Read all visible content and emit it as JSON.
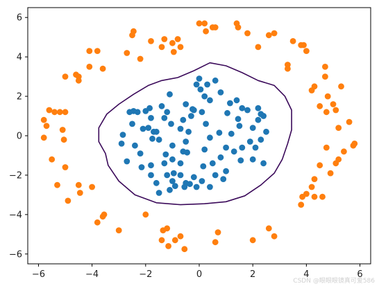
{
  "chart_data": {
    "type": "scatter",
    "xlim": [
      -6.4,
      6.4
    ],
    "ylim": [
      -6.5,
      6.5
    ],
    "xticks": [
      -6,
      -4,
      -2,
      0,
      2,
      4,
      6
    ],
    "yticks": [
      -6,
      -4,
      -2,
      0,
      2,
      4,
      6
    ],
    "grid": false,
    "legend": "none",
    "series": [
      {
        "color": "#1f77b4",
        "points": [
          [
            -2.0,
            1.25
          ],
          [
            -1.9,
            0.4
          ],
          [
            -1.85,
            1.4
          ],
          [
            -1.8,
            0.9
          ],
          [
            -1.75,
            -0.15
          ],
          [
            -1.7,
            0.2
          ],
          [
            -2.3,
            1.2
          ],
          [
            -2.5,
            0.6
          ],
          [
            -2.4,
            -0.5
          ],
          [
            -2.2,
            -0.9
          ],
          [
            -2.15,
            -1.6
          ],
          [
            -2.1,
            0.35
          ],
          [
            -1.4,
            1.5
          ],
          [
            -1.3,
            0.9
          ],
          [
            -1.2,
            1.2
          ],
          [
            -1.1,
            2.1
          ],
          [
            -1.0,
            -0.5
          ],
          [
            -1.5,
            -0.2
          ],
          [
            -1.6,
            0.2
          ],
          [
            -1.8,
            -1.5
          ],
          [
            -1.3,
            -1.4
          ],
          [
            -1.0,
            -1.2
          ],
          [
            -0.95,
            -1.9
          ],
          [
            -0.7,
            -1.4
          ],
          [
            -0.6,
            -0.8
          ],
          [
            -0.5,
            -0.3
          ],
          [
            -0.4,
            0.2
          ],
          [
            -0.6,
            0.8
          ],
          [
            -0.3,
            1.0
          ],
          [
            -0.5,
            1.6
          ],
          [
            -0.2,
            1.3
          ],
          [
            -0.1,
            2.6
          ],
          [
            0.0,
            2.9
          ],
          [
            0.3,
            2.6
          ],
          [
            0.2,
            2.0
          ],
          [
            0.6,
            2.8
          ],
          [
            0.8,
            2.2
          ],
          [
            0.4,
            1.8
          ],
          [
            0.1,
            1.2
          ],
          [
            0.25,
            0.6
          ],
          [
            0.4,
            -0.1
          ],
          [
            0.2,
            -0.7
          ],
          [
            0.5,
            -1.4
          ],
          [
            0.8,
            -1.1
          ],
          [
            1.0,
            -0.6
          ],
          [
            1.2,
            0.1
          ],
          [
            1.5,
            0.5
          ],
          [
            1.6,
            1.4
          ],
          [
            1.4,
            1.8
          ],
          [
            1.8,
            1.3
          ],
          [
            2.0,
            0.4
          ],
          [
            2.1,
            -0.6
          ],
          [
            2.3,
            -0.2
          ],
          [
            2.5,
            0.2
          ],
          [
            2.4,
            1.0
          ],
          [
            2.2,
            0.8
          ],
          [
            2.3,
            1.1
          ],
          [
            2.0,
            -1.2
          ],
          [
            2.4,
            -1.4
          ],
          [
            1.6,
            -0.6
          ],
          [
            1.3,
            -0.8
          ],
          [
            1.0,
            -1.8
          ],
          [
            0.9,
            -2.2
          ],
          [
            0.6,
            -2.0
          ],
          [
            0.4,
            -2.6
          ],
          [
            0.1,
            -2.3
          ],
          [
            -0.2,
            -2.1
          ],
          [
            -0.5,
            -2.4
          ],
          [
            -0.7,
            -2.0
          ],
          [
            -1.0,
            -2.3
          ],
          [
            -1.2,
            -2.0
          ],
          [
            -1.6,
            -2.4
          ],
          [
            -1.8,
            -2.0
          ],
          [
            -1.5,
            -2.9
          ],
          [
            -1.1,
            -2.75
          ],
          [
            -0.9,
            -2.55
          ],
          [
            -0.55,
            -2.6
          ],
          [
            -0.35,
            -2.45
          ],
          [
            -0.1,
            -2.6
          ],
          [
            0.15,
            -1.55
          ],
          [
            -2.7,
            -1.3
          ],
          [
            -2.9,
            -0.4
          ],
          [
            -2.6,
            1.2
          ],
          [
            -2.45,
            1.25
          ],
          [
            -2.85,
            0.05
          ],
          [
            1.05,
            1.15
          ],
          [
            1.15,
            1.65
          ],
          [
            1.45,
            0.85
          ],
          [
            2.2,
            1.4
          ],
          [
            1.9,
            -0.3
          ],
          [
            1.55,
            -1.25
          ],
          [
            -0.45,
            -0.85
          ],
          [
            -1.25,
            -0.95
          ],
          [
            -0.7,
            0.35
          ],
          [
            0.75,
            0.15
          ],
          [
            -1.05,
            0.6
          ],
          [
            -0.25,
            1.35
          ],
          [
            0.05,
            2.35
          ]
        ]
      },
      {
        "color": "#ff7f0e",
        "points": [
          [
            -5.8,
            0.8
          ],
          [
            -5.7,
            0.5
          ],
          [
            -5.6,
            1.3
          ],
          [
            -5.4,
            1.2
          ],
          [
            -5.2,
            1.2
          ],
          [
            -5.0,
            1.2
          ],
          [
            -5.1,
            0.3
          ],
          [
            -5.8,
            -0.1
          ],
          [
            -5.5,
            -1.2
          ],
          [
            -5.0,
            -1.6
          ],
          [
            -5.3,
            -2.5
          ],
          [
            -4.9,
            -3.3
          ],
          [
            -4.5,
            -2.5
          ],
          [
            -4.45,
            -2.9
          ],
          [
            -4.0,
            -2.6
          ],
          [
            -4.6,
            3.1
          ],
          [
            -4.5,
            3.0
          ],
          [
            -4.5,
            2.8
          ],
          [
            -5.0,
            3.0
          ],
          [
            -4.1,
            3.5
          ],
          [
            -3.8,
            4.3
          ],
          [
            -3.6,
            3.4
          ],
          [
            -2.7,
            4.2
          ],
          [
            -2.5,
            5.1
          ],
          [
            -2.45,
            5.3
          ],
          [
            -2.2,
            3.9
          ],
          [
            -1.8,
            4.8
          ],
          [
            -1.4,
            4.5
          ],
          [
            -1.3,
            4.9
          ],
          [
            -1.0,
            4.7
          ],
          [
            -0.8,
            4.9
          ],
          [
            -0.7,
            4.5
          ],
          [
            0.0,
            5.7
          ],
          [
            0.2,
            5.7
          ],
          [
            0.25,
            5.3
          ],
          [
            0.5,
            5.5
          ],
          [
            0.6,
            5.5
          ],
          [
            1.4,
            5.7
          ],
          [
            1.45,
            5.5
          ],
          [
            1.8,
            5.2
          ],
          [
            2.2,
            4.5
          ],
          [
            2.6,
            5.1
          ],
          [
            2.8,
            5.2
          ],
          [
            3.3,
            3.6
          ],
          [
            3.3,
            3.4
          ],
          [
            3.5,
            4.8
          ],
          [
            3.8,
            4.6
          ],
          [
            3.9,
            4.6
          ],
          [
            4.0,
            4.3
          ],
          [
            4.2,
            2.3
          ],
          [
            4.3,
            2.5
          ],
          [
            4.7,
            3.5
          ],
          [
            4.7,
            3.0
          ],
          [
            4.5,
            1.5
          ],
          [
            4.75,
            1.2
          ],
          [
            4.8,
            2.0
          ],
          [
            5.0,
            1.6
          ],
          [
            5.1,
            1.3
          ],
          [
            5.2,
            0.4
          ],
          [
            5.3,
            2.5
          ],
          [
            5.6,
            0.7
          ],
          [
            5.75,
            -0.5
          ],
          [
            5.8,
            -0.4
          ],
          [
            5.4,
            -0.8
          ],
          [
            4.75,
            -0.6
          ],
          [
            4.5,
            -1.5
          ],
          [
            4.9,
            -1.9
          ],
          [
            5.1,
            -1.4
          ],
          [
            5.2,
            -1.2
          ],
          [
            4.3,
            -2.2
          ],
          [
            4.2,
            -2.6
          ],
          [
            4.0,
            -2.95
          ],
          [
            3.85,
            -3.1
          ],
          [
            4.3,
            -3.1
          ],
          [
            4.6,
            -3.1
          ],
          [
            3.8,
            -3.5
          ],
          [
            2.8,
            -5.1
          ],
          [
            2.6,
            -4.7
          ],
          [
            2.0,
            -5.3
          ],
          [
            0.7,
            -4.9
          ],
          [
            0.6,
            -5.4
          ],
          [
            -0.7,
            -5.1
          ],
          [
            -0.9,
            -5.3
          ],
          [
            -1.4,
            -5.3
          ],
          [
            -1.2,
            -4.7
          ],
          [
            -1.35,
            -4.8
          ],
          [
            -1.15,
            -5.6
          ],
          [
            -0.55,
            -5.75
          ],
          [
            -2.0,
            -4.0
          ],
          [
            -3.0,
            -4.8
          ],
          [
            -3.6,
            -4.1
          ],
          [
            -3.55,
            -4.0
          ],
          [
            -3.8,
            -4.4
          ],
          [
            -5.05,
            -0.2
          ],
          [
            -4.1,
            4.3
          ],
          [
            -0.95,
            4.25
          ]
        ]
      }
    ],
    "boundary": {
      "type": "line",
      "color": "#3b0a5a",
      "points": [
        [
          0.4,
          3.7
        ],
        [
          1.0,
          3.55
        ],
        [
          1.6,
          3.2
        ],
        [
          2.2,
          2.8
        ],
        [
          2.8,
          2.55
        ],
        [
          3.2,
          2.0
        ],
        [
          3.45,
          1.3
        ],
        [
          3.45,
          0.3
        ],
        [
          3.3,
          -0.4
        ],
        [
          3.1,
          -1.2
        ],
        [
          2.8,
          -1.9
        ],
        [
          2.3,
          -2.5
        ],
        [
          1.7,
          -3.05
        ],
        [
          1.0,
          -3.35
        ],
        [
          0.2,
          -3.45
        ],
        [
          -0.7,
          -3.5
        ],
        [
          -1.6,
          -3.4
        ],
        [
          -2.4,
          -3.0
        ],
        [
          -3.0,
          -2.3
        ],
        [
          -3.4,
          -1.5
        ],
        [
          -3.5,
          -0.9
        ],
        [
          -3.75,
          -0.3
        ],
        [
          -3.75,
          0.4
        ],
        [
          -3.45,
          1.1
        ],
        [
          -3.0,
          1.6
        ],
        [
          -2.45,
          2.1
        ],
        [
          -1.9,
          2.55
        ],
        [
          -1.4,
          2.8
        ],
        [
          -0.8,
          2.95
        ],
        [
          -0.2,
          3.3
        ],
        [
          0.4,
          3.7
        ]
      ]
    }
  },
  "watermark": "CSDN @眼眼眼镜真可爱586"
}
